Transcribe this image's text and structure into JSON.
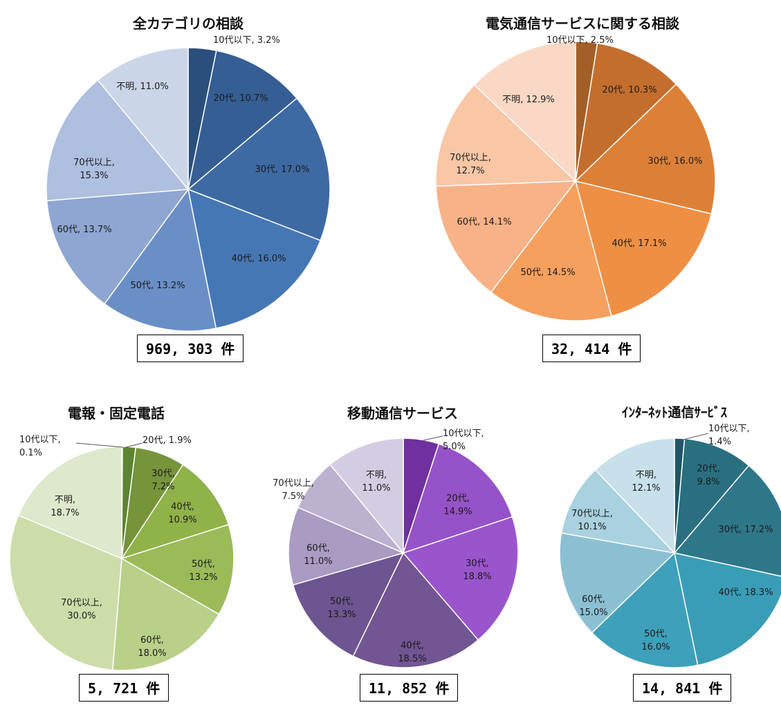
{
  "chart_data": [
    {
      "type": "pie",
      "title": "全カテゴリの相談",
      "total_label": "969, 303 件",
      "slices": [
        {
          "name": "10代以下",
          "value": 3.2,
          "color": "#2b4f7c",
          "label": [
            "10代以下, 3.2%"
          ]
        },
        {
          "name": "20代",
          "value": 10.7,
          "color": "#355e94",
          "label": [
            "20代, 10.7%"
          ]
        },
        {
          "name": "30代",
          "value": 17.0,
          "color": "#3d6aa3",
          "label": [
            "30代, 17.0%"
          ]
        },
        {
          "name": "40代",
          "value": 16.0,
          "color": "#4677b5",
          "label": [
            "40代, 16.0%"
          ]
        },
        {
          "name": "50代",
          "value": 13.2,
          "color": "#6a8fc6",
          "label": [
            "50代, 13.2%"
          ]
        },
        {
          "name": "60代",
          "value": 13.7,
          "color": "#8ea6d1",
          "label": [
            "60代, 13.7%"
          ]
        },
        {
          "name": "70代以上",
          "value": 15.3,
          "color": "#aebfdf",
          "label": [
            "70代以上,",
            "15.3%"
          ]
        },
        {
          "name": "不明",
          "value": 11.0,
          "color": "#cbd5e8",
          "label": [
            "不明, 11.0%"
          ]
        }
      ]
    },
    {
      "type": "pie",
      "title": "電気通信サービスに関する相談",
      "total_label": "32, 414 件",
      "slices": [
        {
          "name": "10代以下",
          "value": 2.5,
          "color": "#a35f28",
          "label": [
            "10代以下, 2.5%"
          ]
        },
        {
          "name": "20代",
          "value": 10.3,
          "color": "#c46e2e",
          "label": [
            "20代, 10.3%"
          ]
        },
        {
          "name": "30代",
          "value": 16.0,
          "color": "#dc8038",
          "label": [
            "30代, 16.0%"
          ]
        },
        {
          "name": "40代",
          "value": 17.1,
          "color": "#ef8f43",
          "label": [
            "40代, 17.1%"
          ]
        },
        {
          "name": "50代",
          "value": 14.5,
          "color": "#f6a05f",
          "label": [
            "50代, 14.5%"
          ]
        },
        {
          "name": "60代",
          "value": 14.1,
          "color": "#f8b288",
          "label": [
            "60代, 14.1%"
          ]
        },
        {
          "name": "70代以上",
          "value": 12.7,
          "color": "#f9c6a6",
          "label": [
            "70代以上,",
            "12.7%"
          ]
        },
        {
          "name": "不明",
          "value": 12.9,
          "color": "#fbd8c6",
          "label": [
            "不明, 12.9%"
          ]
        }
      ]
    },
    {
      "type": "pie",
      "title": "電報・固定電話",
      "total_label": "5, 721 件",
      "slices": [
        {
          "name": "10代以下",
          "value": 0.1,
          "color": "#4a6a22",
          "label": [
            "10代以下,",
            "0.1%"
          ]
        },
        {
          "name": "20代",
          "value": 1.9,
          "color": "#5d8531",
          "label": [
            "20代, 1.9%"
          ]
        },
        {
          "name": "30代",
          "value": 7.2,
          "color": "#76943a",
          "label": [
            "30代,",
            "7.2%"
          ]
        },
        {
          "name": "40代",
          "value": 10.9,
          "color": "#8fb249",
          "label": [
            "40代,",
            "10.9%"
          ]
        },
        {
          "name": "50代",
          "value": 13.2,
          "color": "#9bbb59",
          "label": [
            "50代,",
            "13.2%"
          ]
        },
        {
          "name": "60代",
          "value": 18.0,
          "color": "#b9d089",
          "label": [
            "60代,",
            "18.0%"
          ]
        },
        {
          "name": "70代以上",
          "value": 30.0,
          "color": "#ccddaa",
          "label": [
            "70代以上,",
            "30.0%"
          ]
        },
        {
          "name": "不明",
          "value": 18.7,
          "color": "#dde8cc",
          "label": [
            "不明,",
            "18.7%"
          ]
        }
      ]
    },
    {
      "type": "pie",
      "title": "移動通信サービス",
      "total_label": "11, 852 件",
      "slices": [
        {
          "name": "10代以下",
          "value": 5.0,
          "color": "#7030a0",
          "label": [
            "10代以下,",
            "5.0%"
          ]
        },
        {
          "name": "20代",
          "value": 14.9,
          "color": "#9652c8",
          "label": [
            "20代,",
            "14.9%"
          ]
        },
        {
          "name": "30代",
          "value": 18.8,
          "color": "#9a55cd",
          "label": [
            "30代,",
            "18.8%"
          ]
        },
        {
          "name": "40代",
          "value": 18.5,
          "color": "#725593",
          "label": [
            "40代,",
            "18.5%"
          ]
        },
        {
          "name": "50代",
          "value": 13.3,
          "color": "#6c5590",
          "label": [
            "50代,",
            "13.3%"
          ]
        },
        {
          "name": "60代",
          "value": 11.0,
          "color": "#a99bc2",
          "label": [
            "60代,",
            "11.0%"
          ]
        },
        {
          "name": "70代以上",
          "value": 7.5,
          "color": "#bdb1d0",
          "label": [
            "70代以上,",
            "7.5%"
          ]
        },
        {
          "name": "不明",
          "value": 11.0,
          "color": "#d4cde2",
          "label": [
            "不明,",
            "11.0%"
          ]
        }
      ]
    },
    {
      "type": "pie",
      "title": "ｲﾝﾀｰﾈｯﾄ通信ｻｰﾋﾞｽ",
      "total_label": "14, 841 件",
      "slices": [
        {
          "name": "10代以下",
          "value": 1.4,
          "color": "#1f5566",
          "label": [
            "10代以下,",
            "1.4%"
          ]
        },
        {
          "name": "20代",
          "value": 9.8,
          "color": "#2a6f80",
          "label": [
            "20代,",
            "9.8%"
          ]
        },
        {
          "name": "30代",
          "value": 17.2,
          "color": "#2e7789",
          "label": [
            "30代, 17.2%"
          ]
        },
        {
          "name": "40代",
          "value": 18.3,
          "color": "#3a9db7",
          "label": [
            "40代, 18.3%"
          ]
        },
        {
          "name": "50代",
          "value": 16.0,
          "color": "#3ea0bb",
          "label": [
            "50代,",
            "16.0%"
          ]
        },
        {
          "name": "60代",
          "value": 15.0,
          "color": "#8bc0d3",
          "label": [
            "60代,",
            "15.0%"
          ]
        },
        {
          "name": "70代以上",
          "value": 10.1,
          "color": "#a9d1df",
          "label": [
            "70代以上,",
            "10.1%"
          ]
        },
        {
          "name": "不明",
          "value": 12.1,
          "color": "#c7e0ea",
          "label": [
            "不明,",
            "12.1%"
          ]
        }
      ]
    }
  ]
}
